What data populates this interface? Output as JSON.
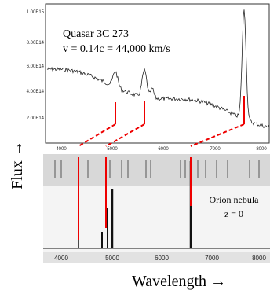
{
  "top_panel": {
    "annotation": [
      "Quasar 3C 273",
      "v = 0.14c = 44,000 km/s"
    ],
    "y_tick_labels": [
      "1.00E15",
      "8.00E14",
      "6.00E14",
      "4.00E14",
      "2.00E14"
    ],
    "x_tick_labels": [
      "4000",
      "5000",
      "6000",
      "7000",
      "8000"
    ]
  },
  "bottom_panel": {
    "annotation": [
      "Orion nebula",
      "z = 0"
    ],
    "x_tick_labels": [
      "4000",
      "5000",
      "6000",
      "7000",
      "8000"
    ]
  },
  "x_axis_label": "Wavelength →",
  "y_axis_label": "Flux →"
}
